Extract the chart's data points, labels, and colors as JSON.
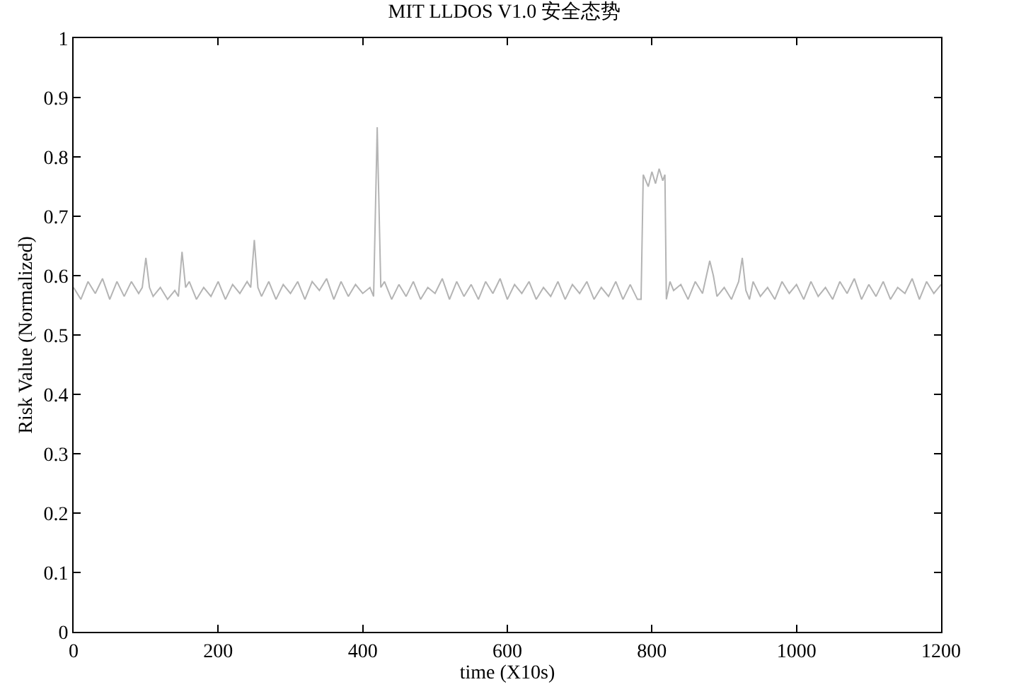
{
  "chart_data": {
    "type": "line",
    "title": "MIT LLDOS V1.0 安全态势",
    "xlabel": "time (X10s)",
    "ylabel": "Risk Value (Normalized)",
    "xlim": [
      0,
      1200
    ],
    "xticks": [
      0,
      200,
      400,
      600,
      800,
      1000,
      1200
    ],
    "ylim": [
      0,
      1
    ],
    "yticks": [
      0,
      0.1,
      0.2,
      0.3,
      0.4,
      0.5,
      0.6,
      0.7,
      0.8,
      0.9,
      1
    ],
    "marker": "none",
    "line_style": "solid",
    "series": [
      {
        "color": "#b4b4b4",
        "x": [
          0,
          10,
          20,
          30,
          40,
          50,
          60,
          70,
          80,
          90,
          95,
          100,
          105,
          110,
          120,
          130,
          140,
          145,
          150,
          155,
          160,
          170,
          180,
          190,
          200,
          210,
          220,
          230,
          240,
          245,
          250,
          255,
          260,
          270,
          280,
          290,
          300,
          310,
          320,
          330,
          340,
          350,
          360,
          370,
          380,
          390,
          400,
          410,
          415,
          420,
          425,
          430,
          440,
          450,
          460,
          470,
          480,
          490,
          500,
          510,
          520,
          530,
          540,
          550,
          560,
          570,
          580,
          590,
          600,
          610,
          620,
          630,
          640,
          650,
          660,
          670,
          680,
          690,
          700,
          710,
          720,
          730,
          740,
          750,
          760,
          770,
          780,
          785,
          788,
          795,
          800,
          805,
          810,
          815,
          818,
          820,
          825,
          830,
          840,
          850,
          860,
          870,
          880,
          885,
          890,
          900,
          910,
          920,
          925,
          930,
          935,
          940,
          950,
          960,
          970,
          980,
          990,
          1000,
          1010,
          1020,
          1030,
          1040,
          1050,
          1060,
          1070,
          1080,
          1090,
          1100,
          1110,
          1120,
          1130,
          1140,
          1150,
          1160,
          1170,
          1180,
          1190,
          1200
        ],
        "values": [
          0.58,
          0.56,
          0.59,
          0.57,
          0.595,
          0.56,
          0.59,
          0.565,
          0.59,
          0.57,
          0.58,
          0.63,
          0.58,
          0.565,
          0.58,
          0.56,
          0.575,
          0.565,
          0.64,
          0.58,
          0.59,
          0.56,
          0.58,
          0.565,
          0.59,
          0.56,
          0.585,
          0.57,
          0.59,
          0.58,
          0.66,
          0.58,
          0.565,
          0.59,
          0.56,
          0.585,
          0.57,
          0.59,
          0.56,
          0.59,
          0.575,
          0.595,
          0.56,
          0.59,
          0.565,
          0.585,
          0.57,
          0.58,
          0.565,
          0.85,
          0.58,
          0.59,
          0.56,
          0.585,
          0.565,
          0.59,
          0.56,
          0.58,
          0.57,
          0.595,
          0.56,
          0.59,
          0.565,
          0.585,
          0.56,
          0.59,
          0.57,
          0.595,
          0.56,
          0.585,
          0.57,
          0.59,
          0.56,
          0.58,
          0.565,
          0.59,
          0.56,
          0.585,
          0.57,
          0.59,
          0.56,
          0.58,
          0.565,
          0.59,
          0.56,
          0.585,
          0.56,
          0.56,
          0.77,
          0.75,
          0.775,
          0.755,
          0.78,
          0.76,
          0.77,
          0.56,
          0.59,
          0.575,
          0.585,
          0.56,
          0.59,
          0.57,
          0.625,
          0.6,
          0.565,
          0.58,
          0.56,
          0.59,
          0.63,
          0.575,
          0.56,
          0.59,
          0.565,
          0.58,
          0.56,
          0.59,
          0.57,
          0.585,
          0.56,
          0.59,
          0.565,
          0.58,
          0.56,
          0.59,
          0.57,
          0.595,
          0.56,
          0.585,
          0.565,
          0.59,
          0.56,
          0.58,
          0.57,
          0.595,
          0.56,
          0.59,
          0.57,
          0.585
        ]
      }
    ]
  }
}
